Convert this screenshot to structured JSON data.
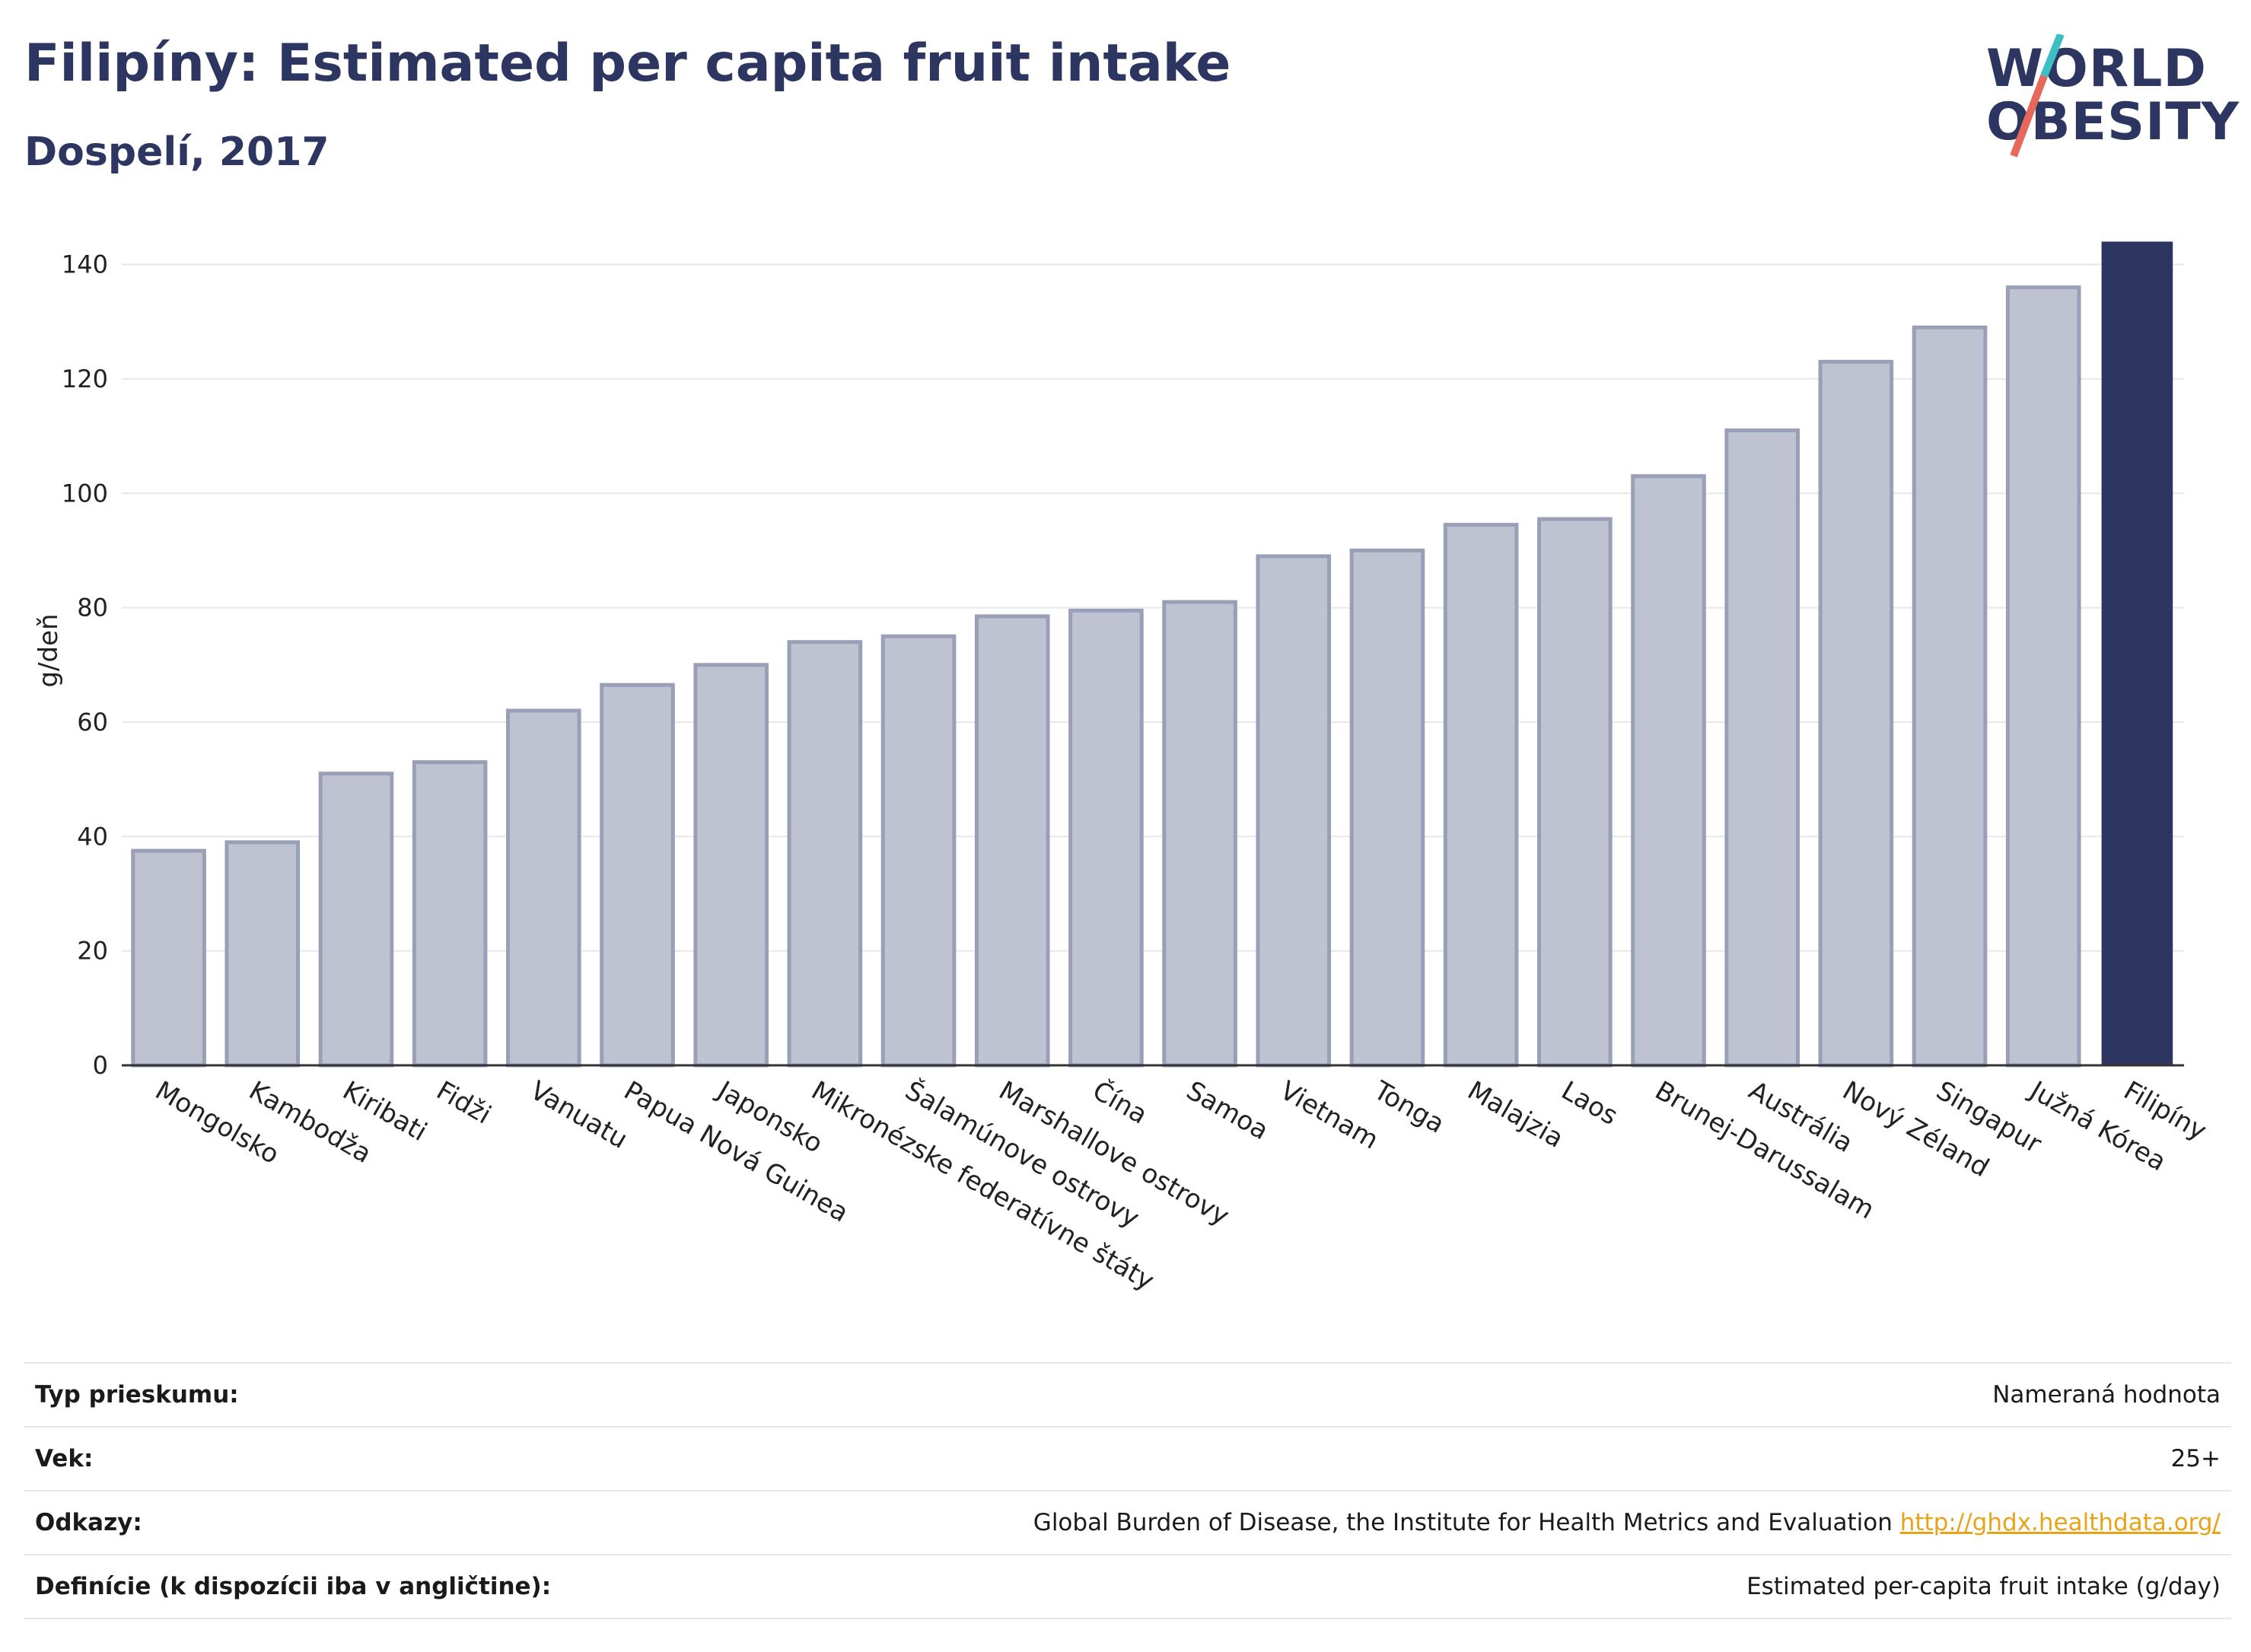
{
  "header": {
    "title": "Filipíny: Estimated per capita fruit intake",
    "subtitle": "Dospelí, 2017"
  },
  "logo": {
    "line1": "WORLD",
    "line2": "OBESITY"
  },
  "colors": {
    "highlight": "#2d3561",
    "bar": "#bfc2d0",
    "bar_border": "#9a9fb8",
    "link": "#e8a419"
  },
  "chart_data": {
    "type": "bar",
    "ylabel": "g/deň",
    "ylim": [
      0,
      145
    ],
    "yticks": [
      0,
      20,
      40,
      60,
      80,
      100,
      120,
      140
    ],
    "grid": true,
    "highlight": "Filipíny",
    "categories": [
      "Mongolsko",
      "Kambodža",
      "Kiribati",
      "Fidži",
      "Vanuatu",
      "Papua Nová Guinea",
      "Japonsko",
      "Mikronézske federatívne štáty",
      "Šalamúnove ostrovy",
      "Marshallove ostrovy",
      "Čína",
      "Samoa",
      "Vietnam",
      "Tonga",
      "Malajzia",
      "Laos",
      "Brunej-Darussalam",
      "Austrália",
      "Nový Zéland",
      "Singapur",
      "Južná Kórea",
      "Filipíny"
    ],
    "values": [
      37.5,
      39,
      51,
      53,
      62,
      66.5,
      70,
      74,
      75,
      78.5,
      79.5,
      81,
      89,
      90,
      94.5,
      95.5,
      103,
      111,
      123,
      129,
      136,
      144
    ]
  },
  "info": {
    "rows": [
      {
        "label": "Typ prieskumu:",
        "value": "Nameraná hodnota"
      },
      {
        "label": "Vek:",
        "value": "25+"
      },
      {
        "label": "Odkazy:",
        "value": "Global Burden of Disease, the Institute for Health Metrics and Evaluation",
        "link": "http://ghdx.healthdata.org/"
      },
      {
        "label": "Definície (k dispozícii iba v angličtine):",
        "value": "Estimated per-capita fruit intake (g/day)"
      }
    ]
  }
}
